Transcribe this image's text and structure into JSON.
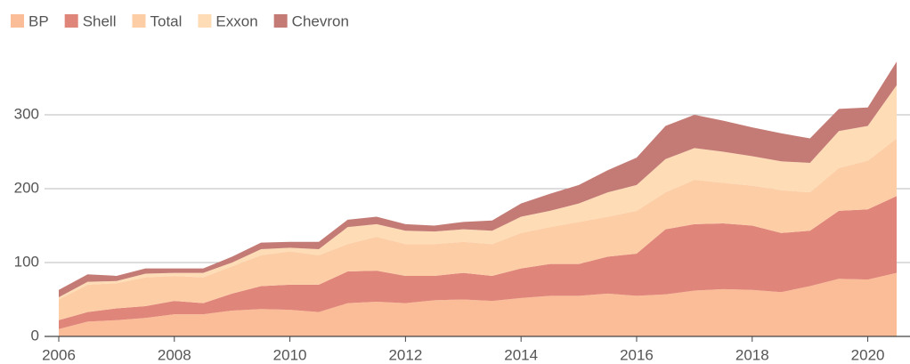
{
  "chart_data": {
    "type": "stacked_area",
    "x": [
      2006,
      2006.5,
      2007,
      2007.5,
      2008,
      2008.5,
      2009,
      2009.5,
      2010,
      2010.5,
      2011,
      2011.5,
      2012,
      2012.5,
      2013,
      2013.5,
      2014,
      2014.5,
      2015,
      2015.5,
      2016,
      2016.5,
      2017,
      2017.5,
      2018,
      2018.5,
      2019,
      2019.5,
      2020,
      2020.5
    ],
    "series": [
      {
        "name": "BP",
        "color": "#fbbd97",
        "values": [
          10,
          20,
          22,
          25,
          30,
          30,
          35,
          37,
          36,
          33,
          45,
          47,
          45,
          49,
          50,
          48,
          52,
          55,
          55,
          58,
          55,
          57,
          62,
          64,
          63,
          60,
          68,
          78,
          77,
          86
        ]
      },
      {
        "name": "Shell",
        "color": "#e0857a",
        "values": [
          12,
          13,
          16,
          16,
          18,
          15,
          23,
          31,
          34,
          37,
          43,
          42,
          37,
          33,
          36,
          34,
          40,
          43,
          43,
          50,
          57,
          88,
          90,
          89,
          87,
          80,
          75,
          92,
          95,
          104
        ]
      },
      {
        "name": "Total",
        "color": "#fdcea6",
        "values": [
          28,
          37,
          34,
          39,
          34,
          35,
          37,
          42,
          45,
          40,
          37,
          46,
          43,
          43,
          42,
          43,
          48,
          50,
          57,
          54,
          58,
          50,
          60,
          55,
          54,
          58,
          52,
          58,
          66,
          78
        ]
      },
      {
        "name": "Exxon",
        "color": "#fddcb6",
        "values": [
          3,
          4,
          3,
          5,
          4,
          6,
          5,
          8,
          5,
          8,
          23,
          17,
          18,
          17,
          17,
          18,
          22,
          22,
          25,
          33,
          35,
          45,
          43,
          42,
          40,
          39,
          40,
          50,
          47,
          72
        ]
      },
      {
        "name": "Chevron",
        "color": "#c47b75",
        "values": [
          10,
          10,
          7,
          7,
          6,
          6,
          8,
          9,
          8,
          10,
          10,
          10,
          9,
          8,
          10,
          14,
          18,
          23,
          25,
          30,
          37,
          45,
          45,
          42,
          39,
          38,
          33,
          30,
          25,
          32
        ]
      }
    ],
    "xlim": [
      2006,
      2020.7
    ],
    "xticks": [
      2006,
      2008,
      2010,
      2012,
      2014,
      2016,
      2018,
      2020
    ],
    "ylim": [
      0,
      400
    ],
    "yticks": [
      0,
      100,
      200,
      300
    ],
    "grid": true,
    "legend": "top-left"
  }
}
